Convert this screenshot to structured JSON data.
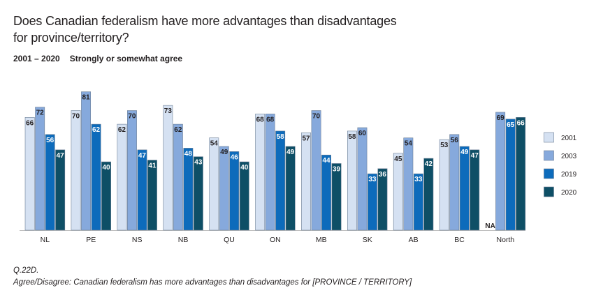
{
  "chart_data": {
    "type": "bar",
    "title": "Does Canadian federalism have more advantages than disadvantages for province/territory?",
    "subtitle_years": "2001 – 2020",
    "subtitle_measure": "Strongly or somewhat agree",
    "categories": [
      "NL",
      "PE",
      "NS",
      "NB",
      "QU",
      "ON",
      "MB",
      "SK",
      "AB",
      "BC",
      "North"
    ],
    "series": [
      {
        "name": "2001",
        "color": "#d5e1f2",
        "values": [
          66,
          70,
          62,
          73,
          54,
          68,
          57,
          58,
          45,
          53,
          null
        ]
      },
      {
        "name": "2003",
        "color": "#86a9dc",
        "values": [
          72,
          81,
          70,
          62,
          49,
          68,
          70,
          60,
          54,
          56,
          69
        ]
      },
      {
        "name": "2019",
        "color": "#0d6bbb",
        "values": [
          56,
          62,
          47,
          48,
          46,
          58,
          44,
          33,
          33,
          49,
          65
        ]
      },
      {
        "name": "2020",
        "color": "#0e4f66",
        "values": [
          47,
          40,
          41,
          43,
          40,
          49,
          39,
          36,
          42,
          47,
          66
        ]
      }
    ],
    "missing_label": "NA",
    "ylim": [
      0,
      85
    ],
    "grid": false,
    "legend_position": "right"
  },
  "notes": {
    "question_code": "Q.22D.",
    "question_text": "Agree/Disagree: Canadian federalism has more advantages than disadvantages for [PROVINCE / TERRITORY]"
  }
}
